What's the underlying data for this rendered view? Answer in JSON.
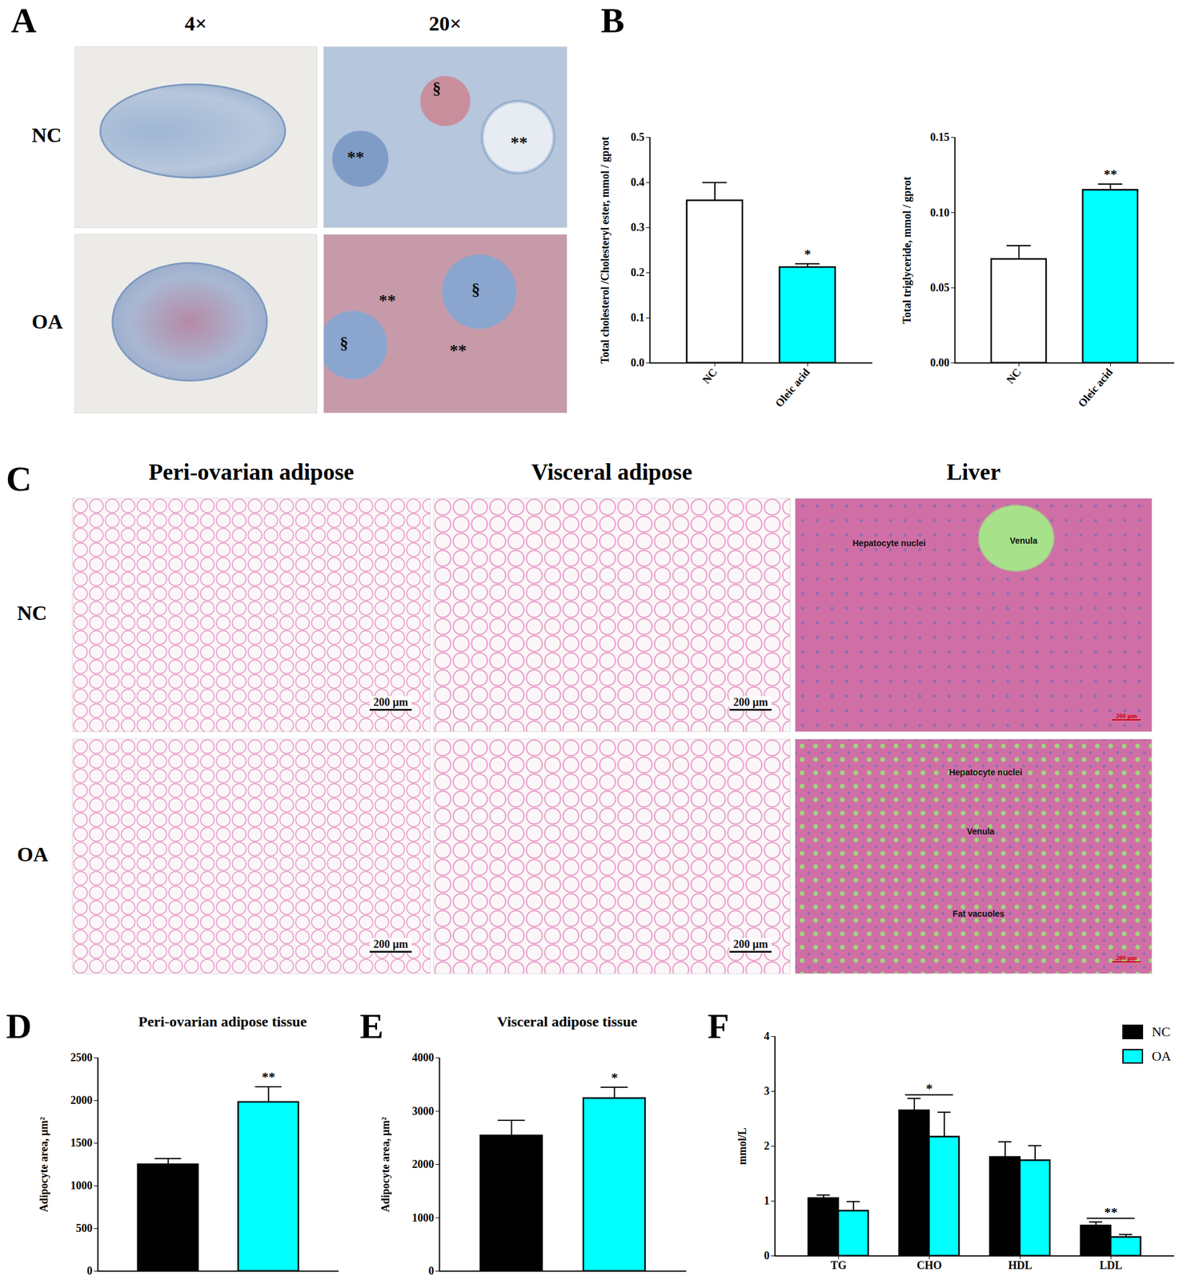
{
  "panel_labels": [
    "A",
    "B",
    "C",
    "D",
    "E",
    "F"
  ],
  "panel_a": {
    "columns": [
      "4×",
      "20×"
    ],
    "rows": [
      "NC",
      "OA"
    ],
    "marks": [
      [
        "§",
        "**",
        "**"
      ],
      [
        "**",
        "§",
        "§",
        "**"
      ]
    ]
  },
  "panel_c": {
    "columns": [
      "Peri-ovarian adipose",
      "Visceral adipose",
      "Liver"
    ],
    "rows": [
      "NC",
      "OA"
    ],
    "scale_bar": "200 μm",
    "liver_labels": [
      [
        "Hepatocyte nuclei",
        "Venula"
      ],
      [
        "Hepatocyte nuclei",
        "Venula",
        "Fat vacuoles"
      ]
    ]
  },
  "chart_data": [
    {
      "type": "bar",
      "y_label": "Total cholesterol /Cholesteryl ester, mmol / gprot",
      "categories": [
        "NC",
        "Oleic acid"
      ],
      "values": [
        0.36,
        0.212
      ],
      "errors": [
        0.04,
        0.008
      ],
      "colors": [
        "#ffffff",
        "#00ffff"
      ],
      "annotations": [
        null,
        "*"
      ],
      "ylim": [
        0,
        0.5
      ],
      "yticks": [
        {
          "value": 0,
          "label": "0.0"
        },
        0.1,
        0.2,
        0.3,
        0.4,
        0.5
      ]
    },
    {
      "type": "bar",
      "y_label": "Total triglyceride, mmol / gprot",
      "categories": [
        "NC",
        "Oleic acid"
      ],
      "values": [
        0.069,
        0.115
      ],
      "errors": [
        0.009,
        0.004
      ],
      "colors": [
        "#ffffff",
        "#00ffff"
      ],
      "annotations": [
        null,
        "**"
      ],
      "ylim": [
        0,
        0.15
      ],
      "yticks": [
        {
          "value": 0,
          "label": "0.00"
        },
        0.05,
        {
          "value": 0.1,
          "label": "0.10"
        },
        0.15
      ]
    },
    {
      "type": "bar",
      "title": "Peri-ovarian adipose tissue",
      "y_label": "Adipocyte area, μm²",
      "categories": [
        null,
        null
      ],
      "values": [
        1250,
        1980
      ],
      "errors": [
        70,
        180
      ],
      "colors": [
        "#000000",
        "#00ffff"
      ],
      "annotations": [
        null,
        "**"
      ],
      "ylim": [
        0,
        2500
      ],
      "yticks": [
        0,
        500,
        1000,
        1500,
        2000,
        2500
      ]
    },
    {
      "type": "bar",
      "title": "Visceral adipose tissue",
      "y_label": "Adipocyte area, μm²",
      "categories": [
        null,
        null
      ],
      "values": [
        2540,
        3240
      ],
      "errors": [
        290,
        210
      ],
      "colors": [
        "#000000",
        "#00ffff"
      ],
      "annotations": [
        null,
        "*"
      ],
      "ylim": [
        0,
        4000
      ],
      "yticks": [
        0,
        1000,
        2000,
        3000,
        4000
      ]
    },
    {
      "type": "bar",
      "y_label": "mmol/L",
      "categories": [
        "TG",
        "CHO",
        "HDL",
        "LDL"
      ],
      "series": [
        {
          "name": "NC",
          "color": "#000000",
          "values": [
            1.05,
            2.65,
            1.8,
            0.55
          ],
          "errors": [
            0.06,
            0.22,
            0.28,
            0.07
          ]
        },
        {
          "name": "OA",
          "color": "#00ffff",
          "values": [
            0.82,
            2.17,
            1.74,
            0.34
          ],
          "errors": [
            0.17,
            0.45,
            0.27,
            0.05
          ]
        }
      ],
      "annotations": [
        null,
        "*",
        null,
        "**"
      ],
      "legend": "top-right",
      "ylim": [
        0,
        4
      ],
      "yticks": [
        0,
        1,
        2,
        3,
        4
      ]
    }
  ]
}
